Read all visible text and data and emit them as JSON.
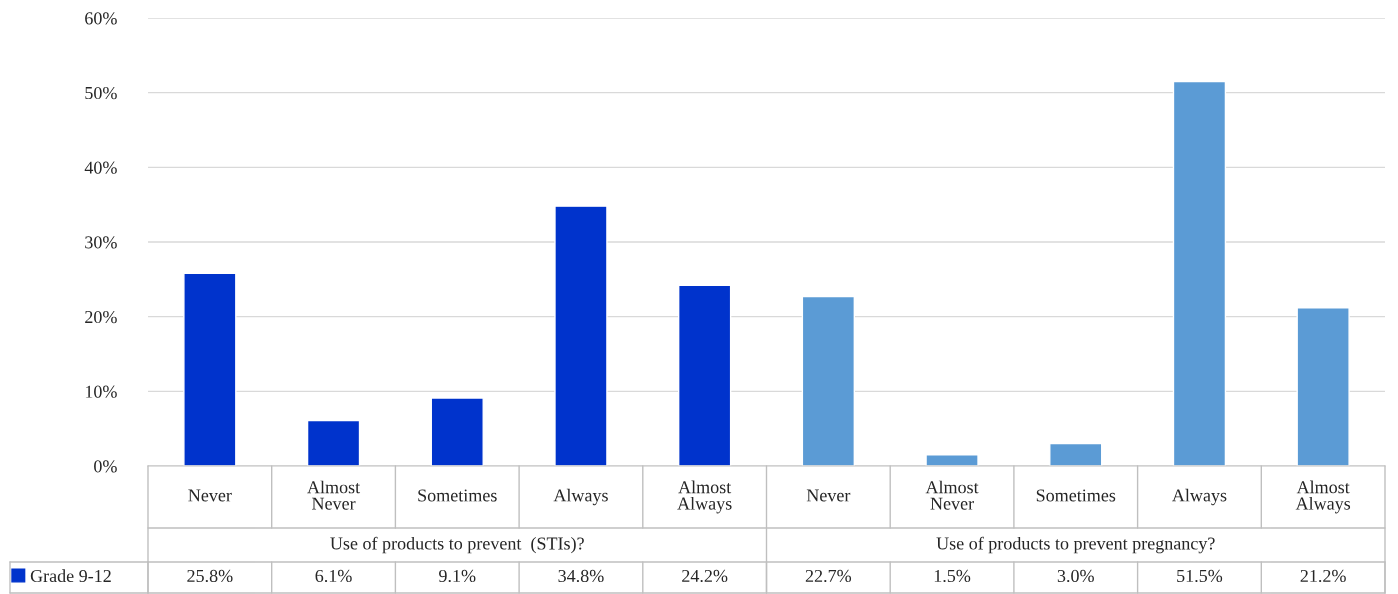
{
  "chart_data": {
    "type": "bar",
    "categories": [
      "Never",
      "Almost Never",
      "Sometimes",
      "Always",
      "Almost Always",
      "Never",
      "Almost Never",
      "Sometimes",
      "Always",
      "Almost Always"
    ],
    "series": [
      {
        "name": "Grade 9-12",
        "color": "#0033cc",
        "colors": [
          "#0033cc",
          "#0033cc",
          "#0033cc",
          "#0033cc",
          "#0033cc",
          "#5b9bd5",
          "#5b9bd5",
          "#5b9bd5",
          "#5b9bd5",
          "#5b9bd5"
        ],
        "values": [
          25.8,
          6.1,
          9.1,
          34.8,
          24.2,
          22.7,
          1.5,
          3.0,
          51.5,
          21.2
        ],
        "value_labels": [
          "25.8%",
          "6.1%",
          "9.1%",
          "34.8%",
          "24.2%",
          "22.7%",
          "1.5%",
          "3.0%",
          "51.5%",
          "21.2%"
        ]
      }
    ],
    "annotations": [
      "Use of products to prevent  (STIs)?",
      "Use of products to prevent pregnancy?"
    ],
    "ylim": [
      0,
      60
    ],
    "yticks": [
      {
        "value": 0,
        "label": "0%"
      },
      {
        "value": 10,
        "label": "10%"
      },
      {
        "value": 20,
        "label": "20%"
      },
      {
        "value": 30,
        "label": "30%"
      },
      {
        "value": 40,
        "label": "40%"
      },
      {
        "value": 50,
        "label": "50%"
      },
      {
        "value": 60,
        "label": "60%"
      }
    ],
    "grid": "y",
    "legend": "bottom"
  }
}
